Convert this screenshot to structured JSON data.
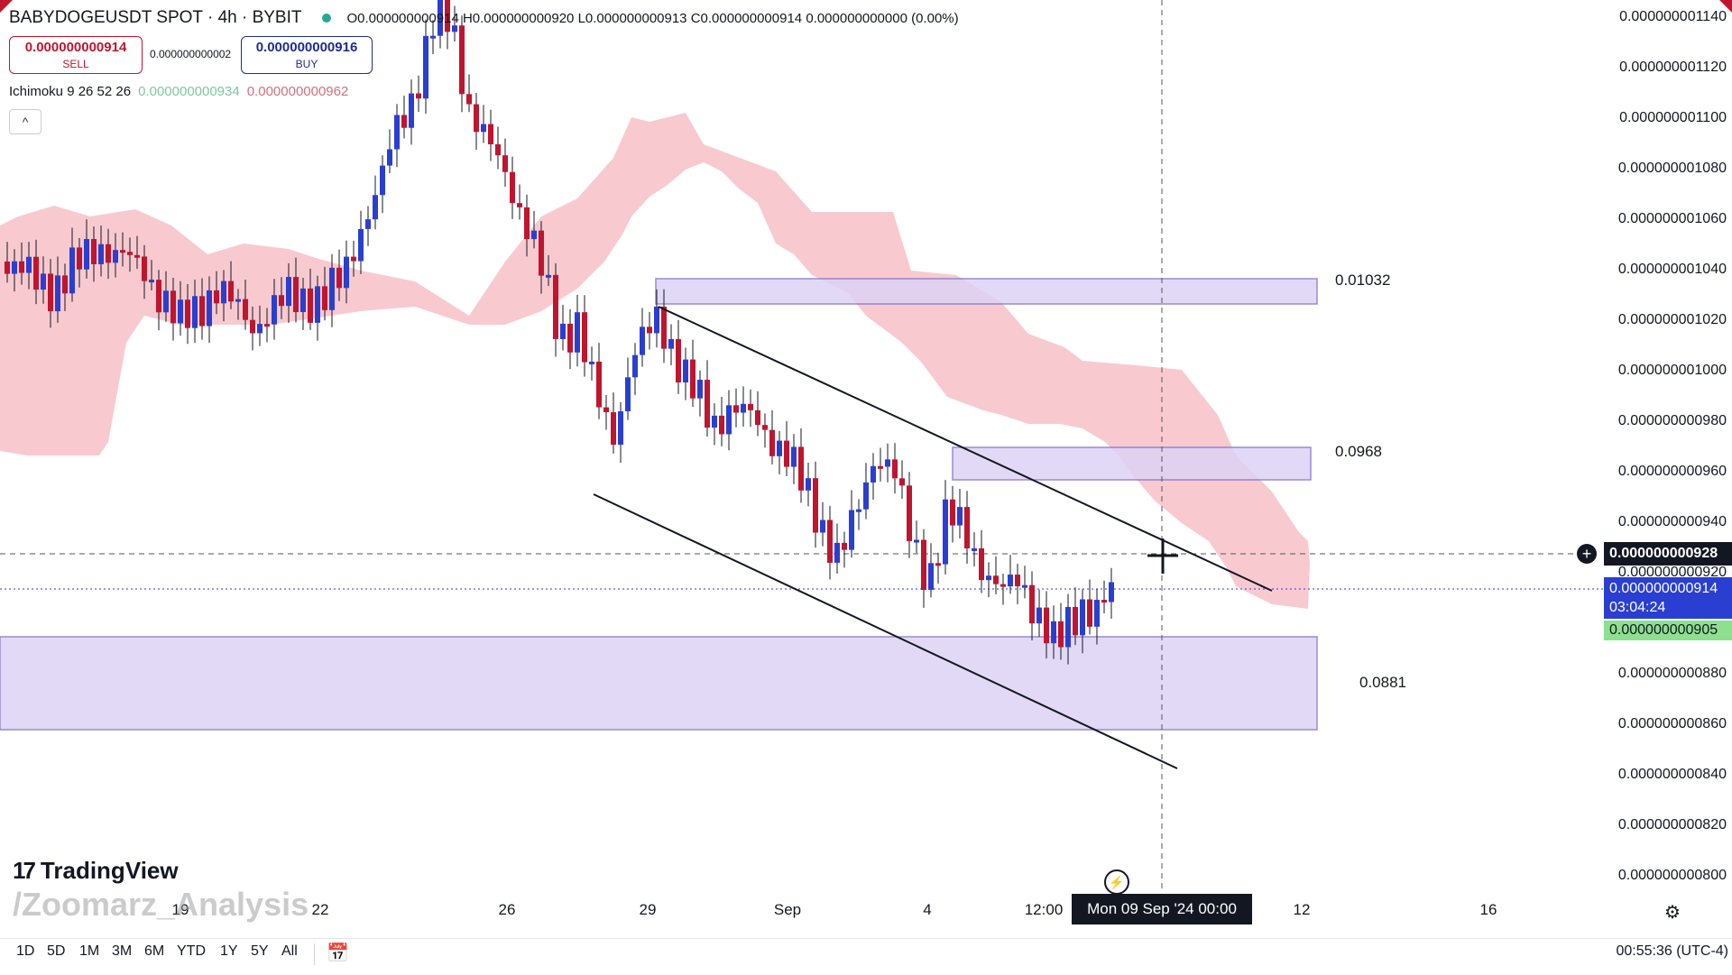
{
  "header": {
    "symbol": "BABYDOGEUSDT SPOT · 4h · BYBIT",
    "ohlc": "O0.000000000914 H0.000000000920 L0.000000000913 C0.000000000914 0.000000000000 (0.00%)"
  },
  "trade": {
    "sell_price": "0.000000000914",
    "sell_label": "SELL",
    "spread": "0.000000000002",
    "buy_price": "0.000000000916",
    "buy_label": "BUY"
  },
  "indicator": {
    "name": "Ichimoku 9 26 52 26",
    "value1": "0.000000000934",
    "value2": "0.000000000962",
    "collapse_icon": "chevron-up-icon"
  },
  "y_axis": {
    "ticks": [
      "0.000000001140",
      "0.000000001120",
      "0.000000001100",
      "0.000000001080",
      "0.000000001060",
      "0.000000001040",
      "0.000000001020",
      "0.000000001000",
      "0.000000000980",
      "0.000000000960",
      "0.000000000940",
      "0.000000000920",
      "0.000000000880",
      "0.000000000860",
      "0.000000000840",
      "0.000000000820",
      "0.000000000800"
    ],
    "crosshair_price": "0.000000000928",
    "last_price": "0.000000000914",
    "countdown": "03:04:24",
    "bid_price": "0.000000000905"
  },
  "x_axis": {
    "ticks": [
      "19",
      "22",
      "26",
      "29",
      "Sep",
      "4",
      "12:00",
      "12",
      "16"
    ],
    "crosshair_date": "Mon 09 Sep '24   00:00"
  },
  "levels": {
    "top": "0.01032",
    "middle": "0.0968",
    "bottom": "0.0881"
  },
  "branding": {
    "logo": "TradingView",
    "watermark": "/Zoomarz_Analysis"
  },
  "ranges": [
    "1D",
    "5D",
    "1M",
    "3M",
    "6M",
    "YTD",
    "1Y",
    "5Y",
    "All"
  ],
  "clock": "00:55:36 (UTC-4)",
  "colors": {
    "up": "#2a3fd1",
    "down": "#c0152f",
    "cloud": "#f7c1c8",
    "zone": "#ddd3f5"
  }
}
